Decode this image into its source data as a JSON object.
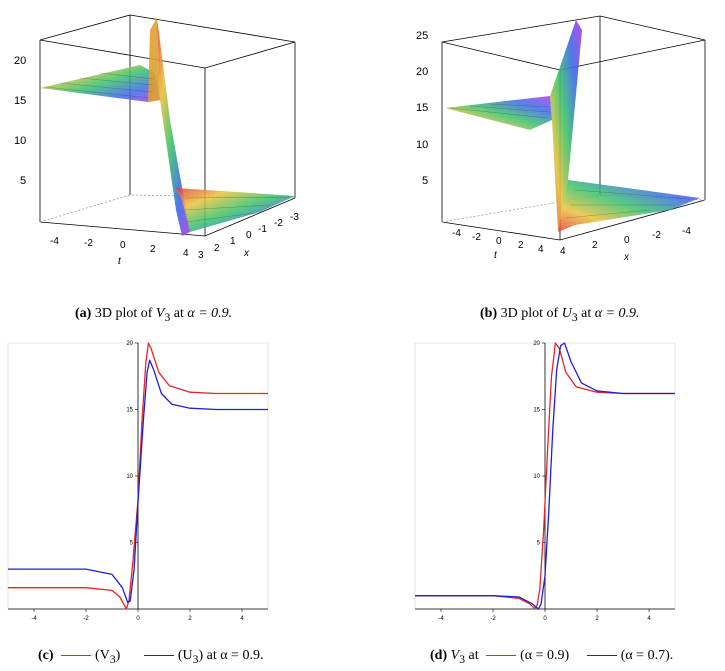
{
  "panels": {
    "a": {
      "label": "(a)",
      "caption_pre": "3D plot of ",
      "var": "V",
      "sub": "3",
      "caption_post": " at ",
      "alpha": "α = 0.9.",
      "z_ticks": [
        "5",
        "10",
        "15",
        "20"
      ],
      "t_ticks": [
        "-4",
        "-2",
        "0",
        "2",
        "4"
      ],
      "x_ticks": [
        "3",
        "2",
        "1",
        "0",
        "-1",
        "-2",
        "-3"
      ],
      "t_label": "t",
      "x_label": "x"
    },
    "b": {
      "label": "(b)",
      "caption_pre": "3D plot of ",
      "var": "U",
      "sub": "3",
      "caption_post": " at ",
      "alpha": "α = 0.9.",
      "z_ticks": [
        "5",
        "10",
        "15",
        "20",
        "25"
      ],
      "t_ticks": [
        "-4",
        "-2",
        "0",
        "2",
        "4"
      ],
      "x_ticks": [
        "4",
        "2",
        "0",
        "-2",
        "-4"
      ],
      "t_label": "t",
      "x_label": "x"
    },
    "c": {
      "label": "(c)",
      "leg1": "(V",
      "leg1_sub": "3",
      "leg1_end": ")",
      "leg2": "(U",
      "leg2_sub": "3",
      "leg2_end": ")",
      "tail": " at α = 0.9."
    },
    "d": {
      "label": "(d)",
      "pre": "V",
      "pre_sub": "3",
      "pre_end": " at",
      "leg1": "(α = 0.9)",
      "leg2": "(α = 0.7)."
    }
  },
  "colors": {
    "red": "#e3262b",
    "blue": "#1f1fd6"
  },
  "chart_data": [
    {
      "type": "line",
      "xlabel": "x",
      "ylabel": "",
      "xlim": [
        -5,
        5
      ],
      "ylim": [
        0,
        20
      ],
      "x_ticks": [
        "-4",
        "-2",
        "0",
        "2",
        "4"
      ],
      "y_ticks": [
        "5",
        "10",
        "15",
        "20"
      ],
      "series": [
        {
          "name": "V3",
          "color": "#e3262b",
          "x": [
            -5,
            -2,
            -1,
            -0.7,
            -0.5,
            -0.45,
            -0.35,
            -0.2,
            0,
            0.15,
            0.3,
            0.4,
            0.5,
            0.8,
            1.2,
            2,
            3,
            5
          ],
          "y": [
            1.6,
            1.6,
            1.4,
            0.9,
            0.2,
            0.0,
            0.6,
            3.5,
            8.2,
            14.0,
            18.5,
            20.0,
            19.6,
            17.8,
            16.8,
            16.3,
            16.2,
            16.2
          ]
        },
        {
          "name": "U3",
          "color": "#1f1fd6",
          "x": [
            -5,
            -2,
            -1,
            -0.6,
            -0.4,
            -0.3,
            -0.15,
            0,
            0.2,
            0.35,
            0.45,
            0.6,
            0.9,
            1.3,
            2,
            3,
            5
          ],
          "y": [
            3.0,
            3.0,
            2.6,
            1.6,
            0.5,
            0.6,
            3.0,
            8.0,
            14.0,
            17.8,
            18.7,
            18.0,
            16.2,
            15.4,
            15.1,
            15.0,
            15.0
          ]
        }
      ]
    },
    {
      "type": "line",
      "xlabel": "x",
      "ylabel": "",
      "xlim": [
        -5,
        5
      ],
      "ylim": [
        0,
        20
      ],
      "x_ticks": [
        "-4",
        "-2",
        "0",
        "2",
        "4"
      ],
      "y_ticks": [
        "5",
        "10",
        "15",
        "20"
      ],
      "series": [
        {
          "name": "α = 0.9",
          "color": "#e3262b",
          "x": [
            -5,
            -2,
            -1,
            -0.6,
            -0.4,
            -0.3,
            -0.2,
            -0.05,
            0.1,
            0.25,
            0.4,
            0.55,
            0.8,
            1.2,
            2,
            3,
            5
          ],
          "y": [
            1.0,
            1.0,
            0.8,
            0.4,
            0.05,
            0.3,
            1.5,
            6.0,
            12.0,
            17.5,
            20.0,
            19.6,
            17.8,
            16.7,
            16.3,
            16.2,
            16.2
          ]
        },
        {
          "name": "α = 0.7",
          "color": "#1f1fd6",
          "x": [
            -5,
            -2,
            -1,
            -0.5,
            -0.25,
            -0.15,
            0,
            0.15,
            0.3,
            0.45,
            0.6,
            0.75,
            1.0,
            1.4,
            2,
            3,
            5
          ],
          "y": [
            1.0,
            1.0,
            0.9,
            0.4,
            0.0,
            0.4,
            2.5,
            7.5,
            13.5,
            18.0,
            19.8,
            20.0,
            18.6,
            17.0,
            16.4,
            16.2,
            16.2
          ]
        }
      ]
    }
  ]
}
